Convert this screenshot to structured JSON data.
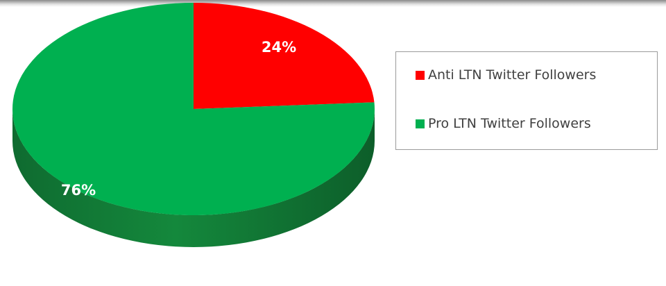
{
  "chart_data": {
    "type": "pie",
    "title": "",
    "series": [
      {
        "values": [
          24,
          76
        ],
        "labels": [
          "Anti LTN Twitter Followers",
          "Pro LTN Twitter Followers"
        ],
        "data_labels": [
          "24%",
          "76%"
        ],
        "colors": [
          "#ff0000",
          "#00b050"
        ]
      }
    ],
    "legend_position": "right",
    "style": "3d-pie"
  },
  "legend": {
    "items": [
      {
        "label": "Anti LTN Twitter Followers",
        "color": "#ff0000"
      },
      {
        "label": "Pro LTN Twitter Followers",
        "color": "#00b050"
      }
    ]
  }
}
